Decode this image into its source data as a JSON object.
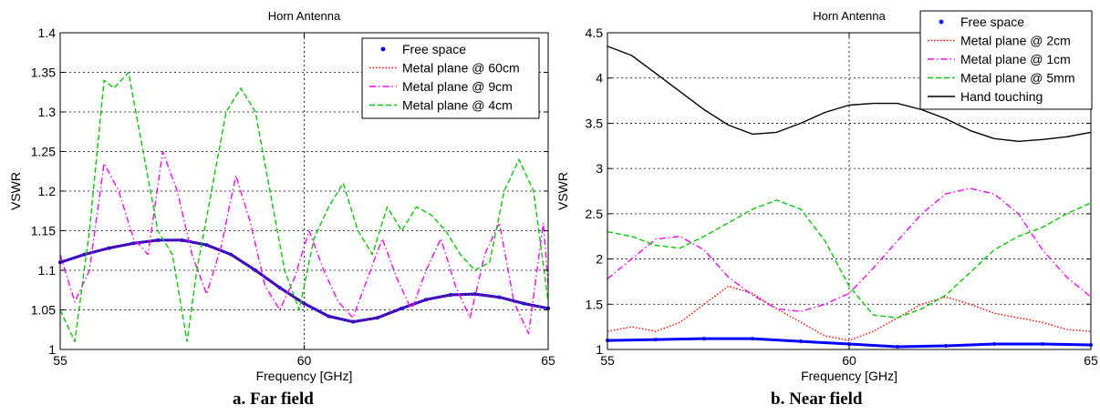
{
  "chart_data": [
    {
      "type": "line",
      "title": "Horn Antenna",
      "xlabel": "Frequency [GHz]",
      "ylabel": "VSWR",
      "caption": "a. Far field",
      "xlim": [
        55,
        65
      ],
      "ylim": [
        1,
        1.4
      ],
      "xticks": [
        "55",
        "60",
        "65"
      ],
      "yticks": [
        "1",
        "1.05",
        "1.1",
        "1.15",
        "1.2",
        "1.25",
        "1.3",
        "1.35",
        "1.4"
      ],
      "grid": true,
      "legend_position": "top-right",
      "series": [
        {
          "name": "Free space",
          "color": "#0000ff",
          "style": "dotted-marker",
          "x": [
            55,
            55.5,
            56,
            56.5,
            57,
            57.5,
            58,
            58.5,
            59,
            59.5,
            60,
            60.5,
            61,
            61.5,
            62,
            62.5,
            63,
            63.5,
            64,
            64.5,
            65
          ],
          "y": [
            1.11,
            1.12,
            1.128,
            1.134,
            1.138,
            1.138,
            1.132,
            1.12,
            1.1,
            1.078,
            1.058,
            1.042,
            1.035,
            1.04,
            1.052,
            1.063,
            1.069,
            1.07,
            1.066,
            1.058,
            1.052
          ]
        },
        {
          "name": "Metal plane @ 60cm",
          "color": "#ff0000",
          "style": "dotted",
          "x": [
            55,
            55.5,
            56,
            56.5,
            57,
            57.5,
            58,
            58.5,
            59,
            59.5,
            60,
            60.5,
            61,
            61.5,
            62,
            62.5,
            63,
            63.5,
            64,
            64.5,
            65
          ],
          "y": [
            1.11,
            1.12,
            1.128,
            1.134,
            1.138,
            1.138,
            1.132,
            1.12,
            1.1,
            1.078,
            1.058,
            1.042,
            1.035,
            1.04,
            1.052,
            1.063,
            1.069,
            1.07,
            1.066,
            1.058,
            1.052
          ]
        },
        {
          "name": "Metal plane @ 9cm",
          "color": "#ff00ff",
          "style": "dashdot",
          "x": [
            55,
            55.3,
            55.6,
            55.9,
            56.2,
            56.5,
            56.8,
            57.1,
            57.4,
            57.7,
            58,
            58.3,
            58.6,
            58.9,
            59.2,
            59.5,
            59.8,
            60.1,
            60.4,
            60.7,
            61,
            61.3,
            61.6,
            61.9,
            62.2,
            62.5,
            62.8,
            63.1,
            63.4,
            63.7,
            64,
            64.3,
            64.6,
            64.9,
            65
          ],
          "y": [
            1.12,
            1.06,
            1.1,
            1.235,
            1.2,
            1.14,
            1.12,
            1.25,
            1.2,
            1.12,
            1.07,
            1.13,
            1.22,
            1.16,
            1.08,
            1.05,
            1.09,
            1.15,
            1.1,
            1.06,
            1.04,
            1.09,
            1.14,
            1.09,
            1.05,
            1.1,
            1.14,
            1.08,
            1.04,
            1.12,
            1.16,
            1.06,
            1.02,
            1.16,
            1.08
          ]
        },
        {
          "name": "Metal plane @ 4cm",
          "color": "#00cc00",
          "style": "dashed",
          "x": [
            55,
            55.3,
            55.6,
            55.9,
            56.1,
            56.4,
            56.7,
            57,
            57.3,
            57.6,
            57.8,
            58.1,
            58.4,
            58.7,
            59,
            59.3,
            59.6,
            59.9,
            60.2,
            60.5,
            60.8,
            61.1,
            61.4,
            61.7,
            62,
            62.3,
            62.6,
            62.9,
            63.2,
            63.5,
            63.8,
            64.1,
            64.4,
            64.7,
            65
          ],
          "y": [
            1.05,
            1.01,
            1.15,
            1.34,
            1.33,
            1.35,
            1.25,
            1.15,
            1.12,
            1.01,
            1.1,
            1.2,
            1.3,
            1.33,
            1.3,
            1.2,
            1.1,
            1.05,
            1.14,
            1.18,
            1.21,
            1.15,
            1.12,
            1.18,
            1.15,
            1.18,
            1.17,
            1.15,
            1.12,
            1.1,
            1.11,
            1.2,
            1.24,
            1.2,
            1.06
          ]
        }
      ]
    },
    {
      "type": "line",
      "title": "Horn Antenna",
      "xlabel": "Frequency [GHz]",
      "ylabel": "VSWR",
      "caption": "b. Near field",
      "xlim": [
        55,
        65
      ],
      "ylim": [
        1,
        4.5
      ],
      "xticks": [
        "55",
        "60",
        "65"
      ],
      "yticks": [
        "1",
        "1.5",
        "2",
        "2.5",
        "3",
        "3.5",
        "4",
        "4.5"
      ],
      "grid": true,
      "legend_position": "top-right",
      "series": [
        {
          "name": "Free space",
          "color": "#0000ff",
          "style": "dotted-marker",
          "x": [
            55,
            56,
            57,
            58,
            59,
            60,
            61,
            62,
            63,
            64,
            65
          ],
          "y": [
            1.1,
            1.11,
            1.12,
            1.12,
            1.09,
            1.06,
            1.03,
            1.04,
            1.06,
            1.06,
            1.05
          ]
        },
        {
          "name": "Metal plane @ 2cm",
          "color": "#ff0000",
          "style": "dotted",
          "x": [
            55,
            55.5,
            56,
            56.5,
            57,
            57.5,
            58,
            58.5,
            59,
            59.5,
            60,
            60.5,
            61,
            61.5,
            62,
            62.5,
            63,
            63.5,
            64,
            64.5,
            65
          ],
          "y": [
            1.2,
            1.25,
            1.2,
            1.3,
            1.5,
            1.7,
            1.62,
            1.45,
            1.3,
            1.15,
            1.1,
            1.2,
            1.35,
            1.5,
            1.58,
            1.5,
            1.4,
            1.35,
            1.3,
            1.22,
            1.2
          ]
        },
        {
          "name": "Metal plane @ 1cm",
          "color": "#ff00ff",
          "style": "dashdot",
          "x": [
            55,
            55.5,
            56,
            56.5,
            57,
            57.5,
            58,
            58.5,
            59,
            59.5,
            60,
            60.5,
            61,
            61.5,
            62,
            62.5,
            63,
            63.5,
            64,
            64.5,
            65
          ],
          "y": [
            1.78,
            2.0,
            2.22,
            2.25,
            2.1,
            1.8,
            1.6,
            1.45,
            1.42,
            1.5,
            1.62,
            1.9,
            2.2,
            2.5,
            2.72,
            2.78,
            2.72,
            2.5,
            2.1,
            1.8,
            1.58
          ]
        },
        {
          "name": "Metal plane @ 5mm",
          "color": "#00cc00",
          "style": "dashed",
          "x": [
            55,
            55.5,
            56,
            56.5,
            57,
            57.5,
            58,
            58.5,
            59,
            59.5,
            60,
            60.5,
            61,
            61.5,
            62,
            62.5,
            63,
            63.5,
            64,
            64.5,
            65
          ],
          "y": [
            2.3,
            2.25,
            2.15,
            2.12,
            2.25,
            2.4,
            2.55,
            2.65,
            2.55,
            2.2,
            1.7,
            1.38,
            1.35,
            1.45,
            1.6,
            1.85,
            2.1,
            2.25,
            2.35,
            2.5,
            2.62
          ]
        },
        {
          "name": "Hand touching",
          "color": "#000000",
          "style": "solid",
          "x": [
            55,
            55.5,
            56,
            56.5,
            57,
            57.5,
            58,
            58.5,
            59,
            59.5,
            60,
            60.5,
            61,
            61.5,
            62,
            62.5,
            63,
            63.5,
            64,
            64.5,
            65
          ],
          "y": [
            4.35,
            4.25,
            4.05,
            3.85,
            3.65,
            3.48,
            3.38,
            3.4,
            3.5,
            3.62,
            3.7,
            3.72,
            3.72,
            3.65,
            3.55,
            3.42,
            3.33,
            3.3,
            3.32,
            3.35,
            3.4
          ]
        }
      ]
    }
  ]
}
